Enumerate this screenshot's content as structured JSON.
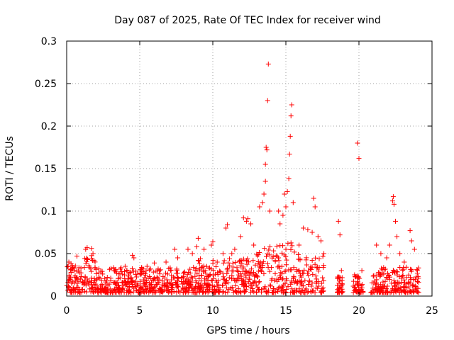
{
  "chart_data": {
    "type": "scatter",
    "title": "Day 087 of 2025, Rate Of TEC Index for receiver wind",
    "xlabel": "GPS time / hours",
    "ylabel": "ROTI / TECUs",
    "xlim": [
      0,
      25
    ],
    "ylim": [
      0,
      0.3
    ],
    "xticks": [
      "0",
      "5",
      "10",
      "15",
      "20",
      "25"
    ],
    "yticks": [
      "0",
      "0.05",
      "0.1",
      "0.15",
      "0.2",
      "0.25",
      "0.3"
    ],
    "grid": true,
    "marker": "plus",
    "color": "#ff0000",
    "series": [
      {
        "points": [
          [
            0.1,
            0.035
          ],
          [
            0.15,
            0.04
          ],
          [
            0.3,
            0.038
          ],
          [
            0.5,
            0.03
          ],
          [
            0.7,
            0.047
          ],
          [
            1.3,
            0.055
          ],
          [
            1.4,
            0.057
          ],
          [
            1.7,
            0.056
          ],
          [
            1.8,
            0.05
          ],
          [
            2.2,
            0.032
          ],
          [
            3.3,
            0.03
          ],
          [
            4.0,
            0.035
          ],
          [
            4.5,
            0.048
          ],
          [
            4.6,
            0.045
          ],
          [
            5.5,
            0.035
          ],
          [
            6.0,
            0.039
          ],
          [
            6.8,
            0.04
          ],
          [
            7.4,
            0.055
          ],
          [
            7.6,
            0.045
          ],
          [
            8.3,
            0.055
          ],
          [
            8.6,
            0.05
          ],
          [
            8.9,
            0.058
          ],
          [
            9.0,
            0.068
          ],
          [
            9.4,
            0.055
          ],
          [
            9.9,
            0.06
          ],
          [
            10.0,
            0.064
          ],
          [
            10.3,
            0.04
          ],
          [
            10.7,
            0.05
          ],
          [
            10.9,
            0.08
          ],
          [
            11.0,
            0.084
          ],
          [
            11.3,
            0.05
          ],
          [
            11.5,
            0.055
          ],
          [
            11.9,
            0.07
          ],
          [
            12.1,
            0.092
          ],
          [
            12.3,
            0.088
          ],
          [
            12.4,
            0.091
          ],
          [
            12.6,
            0.085
          ],
          [
            12.8,
            0.06
          ],
          [
            13.2,
            0.105
          ],
          [
            13.4,
            0.11
          ],
          [
            13.5,
            0.12
          ],
          [
            13.6,
            0.135
          ],
          [
            13.6,
            0.155
          ],
          [
            13.65,
            0.175
          ],
          [
            13.7,
            0.172
          ],
          [
            13.75,
            0.23
          ],
          [
            13.8,
            0.273
          ],
          [
            13.9,
            0.1
          ],
          [
            14.5,
            0.1
          ],
          [
            14.6,
            0.085
          ],
          [
            14.8,
            0.095
          ],
          [
            14.9,
            0.12
          ],
          [
            15.0,
            0.105
          ],
          [
            15.1,
            0.123
          ],
          [
            15.2,
            0.138
          ],
          [
            15.25,
            0.167
          ],
          [
            15.3,
            0.188
          ],
          [
            15.35,
            0.212
          ],
          [
            15.4,
            0.225
          ],
          [
            15.5,
            0.11
          ],
          [
            15.9,
            0.06
          ],
          [
            16.2,
            0.08
          ],
          [
            16.5,
            0.078
          ],
          [
            16.8,
            0.075
          ],
          [
            16.9,
            0.115
          ],
          [
            17.0,
            0.105
          ],
          [
            17.2,
            0.07
          ],
          [
            17.4,
            0.065
          ],
          [
            17.6,
            0.05
          ],
          [
            18.6,
            0.088
          ],
          [
            18.7,
            0.072
          ],
          [
            18.8,
            0.03
          ],
          [
            19.7,
            0.025
          ],
          [
            19.9,
            0.18
          ],
          [
            20.0,
            0.162
          ],
          [
            20.2,
            0.03
          ],
          [
            21.2,
            0.06
          ],
          [
            21.5,
            0.05
          ],
          [
            21.9,
            0.045
          ],
          [
            22.1,
            0.06
          ],
          [
            22.3,
            0.112
          ],
          [
            22.35,
            0.117
          ],
          [
            22.4,
            0.108
          ],
          [
            22.5,
            0.088
          ],
          [
            22.6,
            0.07
          ],
          [
            22.8,
            0.05
          ],
          [
            23.1,
            0.04
          ],
          [
            23.5,
            0.077
          ],
          [
            23.6,
            0.065
          ],
          [
            23.8,
            0.055
          ],
          [
            24.0,
            0.03
          ]
        ]
      }
    ]
  }
}
